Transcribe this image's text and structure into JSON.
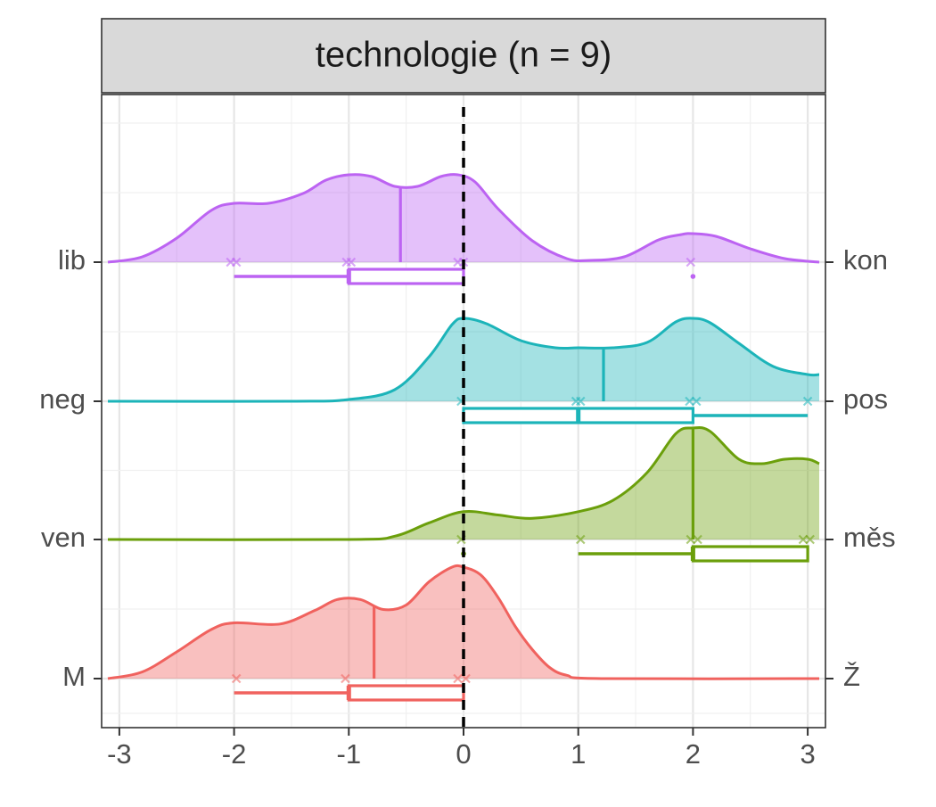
{
  "chart_data": {
    "type": "ridgeline",
    "facet_title": "technologie (n = 9)",
    "x_ticks": [
      -3,
      -2,
      -1,
      0,
      1,
      2,
      3
    ],
    "xlim": [
      -3.1,
      3.1
    ],
    "reference_line_x": 0,
    "grid": true,
    "series": [
      {
        "left_label": "M",
        "right_label": "Ž",
        "color": "#F0625E",
        "density_x": [
          -3.1,
          -2.8,
          -2.5,
          -2.2,
          -2.0,
          -1.6,
          -1.3,
          -1.1,
          -0.9,
          -0.7,
          -0.5,
          -0.3,
          -0.1,
          0.0,
          0.15,
          0.3,
          0.45,
          0.6,
          0.75,
          0.9,
          1.2,
          3.1
        ],
        "density_y": [
          0.0,
          0.06,
          0.24,
          0.44,
          0.5,
          0.49,
          0.61,
          0.71,
          0.71,
          0.62,
          0.66,
          0.87,
          1.0,
          1.0,
          0.93,
          0.73,
          0.47,
          0.26,
          0.1,
          0.03,
          0.0,
          0.0
        ],
        "mean": -0.78,
        "points": [
          -1.98,
          -1.03,
          -0.05,
          0.02
        ],
        "box": {
          "whisker_low": -2,
          "q1": -1,
          "median": -1,
          "q3": 0,
          "whisker_high": 0
        },
        "outliers": []
      },
      {
        "left_label": "ven",
        "right_label": "měs",
        "color": "#6B9F0B",
        "density_x": [
          -3.1,
          -1.0,
          -0.6,
          -0.3,
          0.0,
          0.3,
          0.6,
          1.0,
          1.3,
          1.6,
          1.85,
          2.0,
          2.15,
          2.4,
          2.6,
          2.8,
          3.0,
          3.1
        ],
        "density_y": [
          0.0,
          0.0,
          0.03,
          0.15,
          0.25,
          0.22,
          0.19,
          0.25,
          0.35,
          0.6,
          0.95,
          1.0,
          0.97,
          0.72,
          0.68,
          0.72,
          0.72,
          0.68
        ],
        "mean": 2.0,
        "points": [
          -0.02,
          1.02,
          1.98,
          2.04,
          2.96,
          3.02
        ],
        "box": {
          "whisker_low": 1,
          "q1": 2,
          "median": 2,
          "q3": 3,
          "whisker_high": 3
        },
        "outliers": [
          0
        ]
      },
      {
        "left_label": "neg",
        "right_label": "pos",
        "color": "#1CB4B9",
        "density_x": [
          -3.1,
          -1.5,
          -1.0,
          -0.6,
          -0.3,
          -0.1,
          0.0,
          0.2,
          0.5,
          0.8,
          1.0,
          1.3,
          1.6,
          1.85,
          2.0,
          2.15,
          2.4,
          2.7,
          3.0,
          3.1
        ],
        "density_y": [
          0.0,
          0.0,
          0.02,
          0.13,
          0.5,
          0.86,
          0.93,
          0.87,
          0.68,
          0.6,
          0.6,
          0.6,
          0.66,
          0.89,
          0.93,
          0.88,
          0.65,
          0.39,
          0.3,
          0.3
        ],
        "mean": 1.22,
        "points": [
          -0.02,
          0.98,
          1.02,
          1.97,
          2.03,
          3.0
        ],
        "box": {
          "whisker_low": 0,
          "q1": 0,
          "median": 1,
          "q3": 2,
          "whisker_high": 3
        },
        "outliers": []
      },
      {
        "left_label": "lib",
        "right_label": "kon",
        "color": "#BC63F2",
        "density_x": [
          -3.1,
          -2.8,
          -2.5,
          -2.2,
          -2.0,
          -1.7,
          -1.4,
          -1.2,
          -1.0,
          -0.8,
          -0.6,
          -0.4,
          -0.2,
          -0.05,
          0.1,
          0.3,
          0.6,
          0.9,
          1.1,
          1.4,
          1.7,
          1.9,
          2.0,
          2.2,
          2.5,
          2.8,
          3.1
        ],
        "density_y": [
          0.0,
          0.06,
          0.27,
          0.58,
          0.66,
          0.66,
          0.77,
          0.92,
          0.98,
          0.96,
          0.85,
          0.85,
          0.96,
          0.98,
          0.9,
          0.6,
          0.24,
          0.04,
          0.02,
          0.06,
          0.25,
          0.31,
          0.32,
          0.29,
          0.15,
          0.04,
          0.0
        ],
        "mean": -0.55,
        "points": [
          -2.03,
          -1.98,
          -0.98,
          -1.02,
          -0.05,
          0.0,
          1.98
        ],
        "box": {
          "whisker_low": -2,
          "q1": -1,
          "median": -1,
          "q3": 0,
          "whisker_high": 0
        },
        "outliers": [
          2
        ]
      }
    ]
  }
}
